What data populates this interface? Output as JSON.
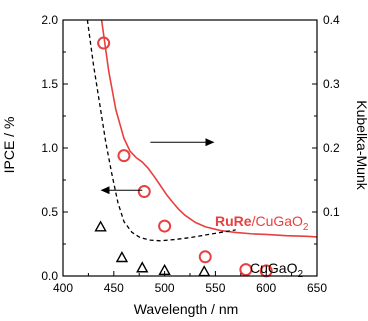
{
  "chart_data": {
    "type": "scatter",
    "xlabel": "Wavelength / nm",
    "ylabel_left": "IPCE / %",
    "ylabel_right": "Kubelka-Munk",
    "xlim": [
      400,
      650
    ],
    "ylim_left": [
      0,
      2.0
    ],
    "ylim_right": [
      0,
      0.4
    ],
    "x_ticks": [
      "400",
      "450",
      "500",
      "550",
      "600",
      "650"
    ],
    "y_left_ticks": [
      "0.0",
      "0.5",
      "1.0",
      "1.5",
      "2.0"
    ],
    "y_right_ticks": [
      "0.1",
      "0.2",
      "0.3",
      "0.4"
    ],
    "grid": false,
    "series": [
      {
        "name_bold": "RuRe",
        "name_rest": "/CuGaO",
        "name_sub": "2",
        "color": "#e8403f",
        "marker": "circle",
        "axis": "left",
        "x": [
          440,
          460,
          480,
          500,
          540,
          580,
          600
        ],
        "y": [
          1.82,
          0.94,
          0.66,
          0.39,
          0.15,
          0.05,
          0.04
        ]
      },
      {
        "name_rest": "CuGaO",
        "name_sub": "2",
        "color": "#000000",
        "marker": "triangle",
        "axis": "left",
        "x": [
          437,
          458,
          478,
          500,
          539
        ],
        "y": [
          0.38,
          0.14,
          0.06,
          0.04,
          0.03
        ]
      }
    ],
    "absorbance_curves": [
      {
        "color": "#e8403f",
        "axis": "right",
        "x": [
          438,
          445,
          452,
          460,
          466,
          472,
          478,
          484,
          490,
          496,
          502,
          508,
          514,
          520,
          530,
          540,
          555,
          570,
          585,
          600,
          620,
          640,
          650
        ],
        "y": [
          0.4,
          0.32,
          0.26,
          0.215,
          0.195,
          0.185,
          0.178,
          0.168,
          0.155,
          0.141,
          0.127,
          0.115,
          0.104,
          0.095,
          0.084,
          0.077,
          0.071,
          0.068,
          0.066,
          0.065,
          0.063,
          0.062,
          0.061
        ]
      },
      {
        "color": "#000000",
        "axis": "right",
        "dashed": true,
        "x": [
          424,
          430,
          436,
          442,
          448,
          454,
          460,
          468,
          476,
          486,
          496,
          510,
          525,
          540,
          555,
          570
        ],
        "y": [
          0.4,
          0.33,
          0.27,
          0.21,
          0.16,
          0.115,
          0.085,
          0.068,
          0.06,
          0.056,
          0.055,
          0.057,
          0.06,
          0.064,
          0.068,
          0.072
        ]
      }
    ],
    "axis_arrows": [
      {
        "direction": "right",
        "x_from": 486,
        "x_to": 548,
        "y_right": 0.209
      },
      {
        "direction": "left",
        "x_from": 478,
        "x_to": 438,
        "y_right": 0.134
      }
    ]
  }
}
